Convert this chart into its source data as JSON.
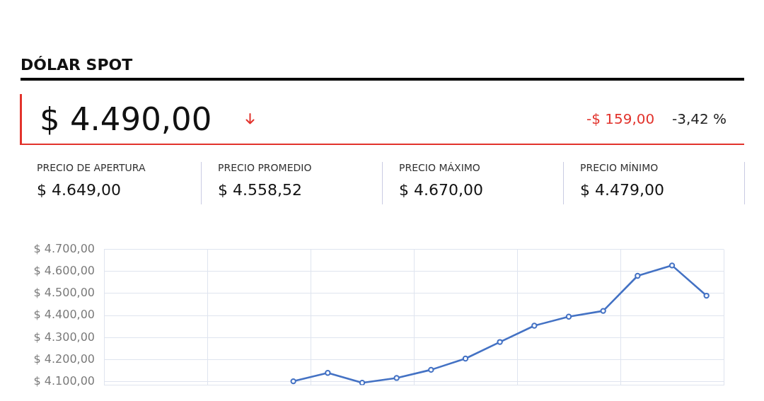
{
  "chart_data": [
    {
      "type": "other",
      "title": "DÓLAR SPOT",
      "annotations": [
        "$ 4.490,00",
        "-$ 159,00",
        "-3,42 %",
        "PRECIO DE APERTURA",
        "$ 4.649,00",
        "PRECIO PROMEDIO",
        "$ 4.558,52",
        "PRECIO MÁXIMO",
        "$ 4.670,00",
        "PRECIO MÍNIMO",
        "$ 4.479,00"
      ]
    },
    {
      "type": "line",
      "categories": [
        null,
        null,
        null,
        null,
        null,
        null,
        null,
        null,
        null,
        null,
        null,
        null,
        null,
        null,
        null,
        null,
        null,
        null
      ],
      "series": [
        {
          "color": "#4472c4",
          "values": [
            null,
            null,
            null,
            null,
            null,
            4102,
            4140,
            4095,
            4117,
            4154,
            4205,
            4280,
            4354,
            4395,
            4421,
            4580,
            4627,
            4490
          ]
        }
      ],
      "ylim": [
        4085,
        4700
      ],
      "yticks": [
        {
          "value": 4100,
          "label": "$ 4.100,00"
        },
        {
          "value": 4200,
          "label": "$ 4.200,00"
        },
        {
          "value": 4300,
          "label": "$ 4.300,00"
        },
        {
          "value": 4400,
          "label": "$ 4.400,00"
        },
        {
          "value": 4500,
          "label": "$ 4.500,00"
        },
        {
          "value": 4600,
          "label": "$ 4.600,00"
        },
        {
          "value": 4700,
          "label": "$ 4.700,00"
        }
      ],
      "grid": true,
      "marker": "circle",
      "tick_labels": "y"
    }
  ]
}
